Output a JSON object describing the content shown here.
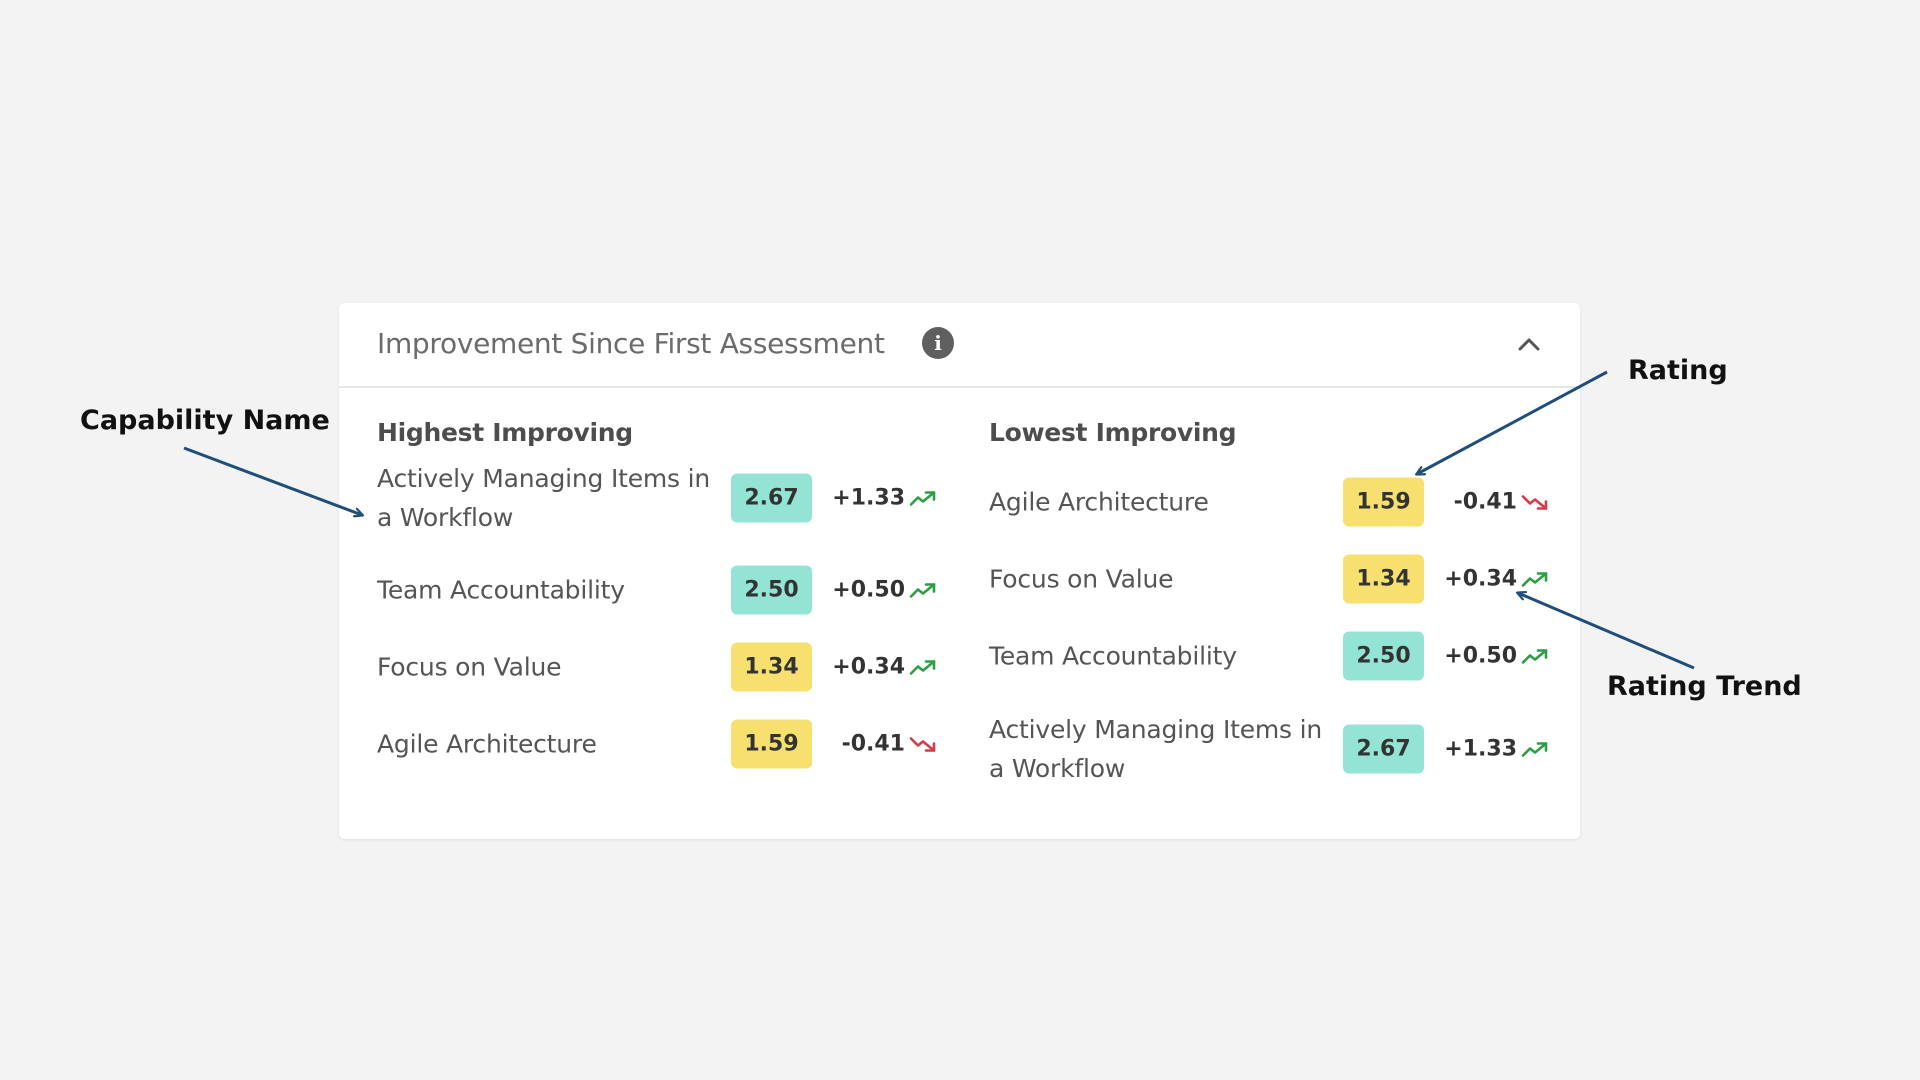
{
  "card": {
    "title": "Improvement Since First Assessment",
    "info_icon": "info-icon",
    "collapse_icon": "chevron-up-icon"
  },
  "colors": {
    "high_rating": "#94e4d5",
    "low_rating": "#f7e06e",
    "trend_up": "#2e9e44",
    "trend_down": "#d63a4a",
    "annotation_arrow": "#1f4e7a"
  },
  "highest": {
    "title": "Highest Improving",
    "items": [
      {
        "name": "Actively Managing Items in a Workflow",
        "rating": "2.67",
        "delta": "+1.33",
        "trend": "up",
        "level": "teal"
      },
      {
        "name": "Team Accountability",
        "rating": "2.50",
        "delta": "+0.50",
        "trend": "up",
        "level": "teal"
      },
      {
        "name": "Focus on Value",
        "rating": "1.34",
        "delta": "+0.34",
        "trend": "up",
        "level": "yellow"
      },
      {
        "name": "Agile Architecture",
        "rating": "1.59",
        "delta": "-0.41",
        "trend": "down",
        "level": "yellow"
      }
    ]
  },
  "lowest": {
    "title": "Lowest Improving",
    "items": [
      {
        "name": "Agile Architecture",
        "rating": "1.59",
        "delta": "-0.41",
        "trend": "down",
        "level": "yellow"
      },
      {
        "name": "Focus on Value",
        "rating": "1.34",
        "delta": "+0.34",
        "trend": "up",
        "level": "yellow"
      },
      {
        "name": "Team Accountability",
        "rating": "2.50",
        "delta": "+0.50",
        "trend": "up",
        "level": "teal"
      },
      {
        "name": "Actively Managing Items in a Workflow",
        "rating": "2.67",
        "delta": "+1.33",
        "trend": "up",
        "level": "teal"
      }
    ]
  },
  "annotations": {
    "capability_name": "Capability Name",
    "rating": "Rating",
    "rating_trend": "Rating Trend"
  }
}
